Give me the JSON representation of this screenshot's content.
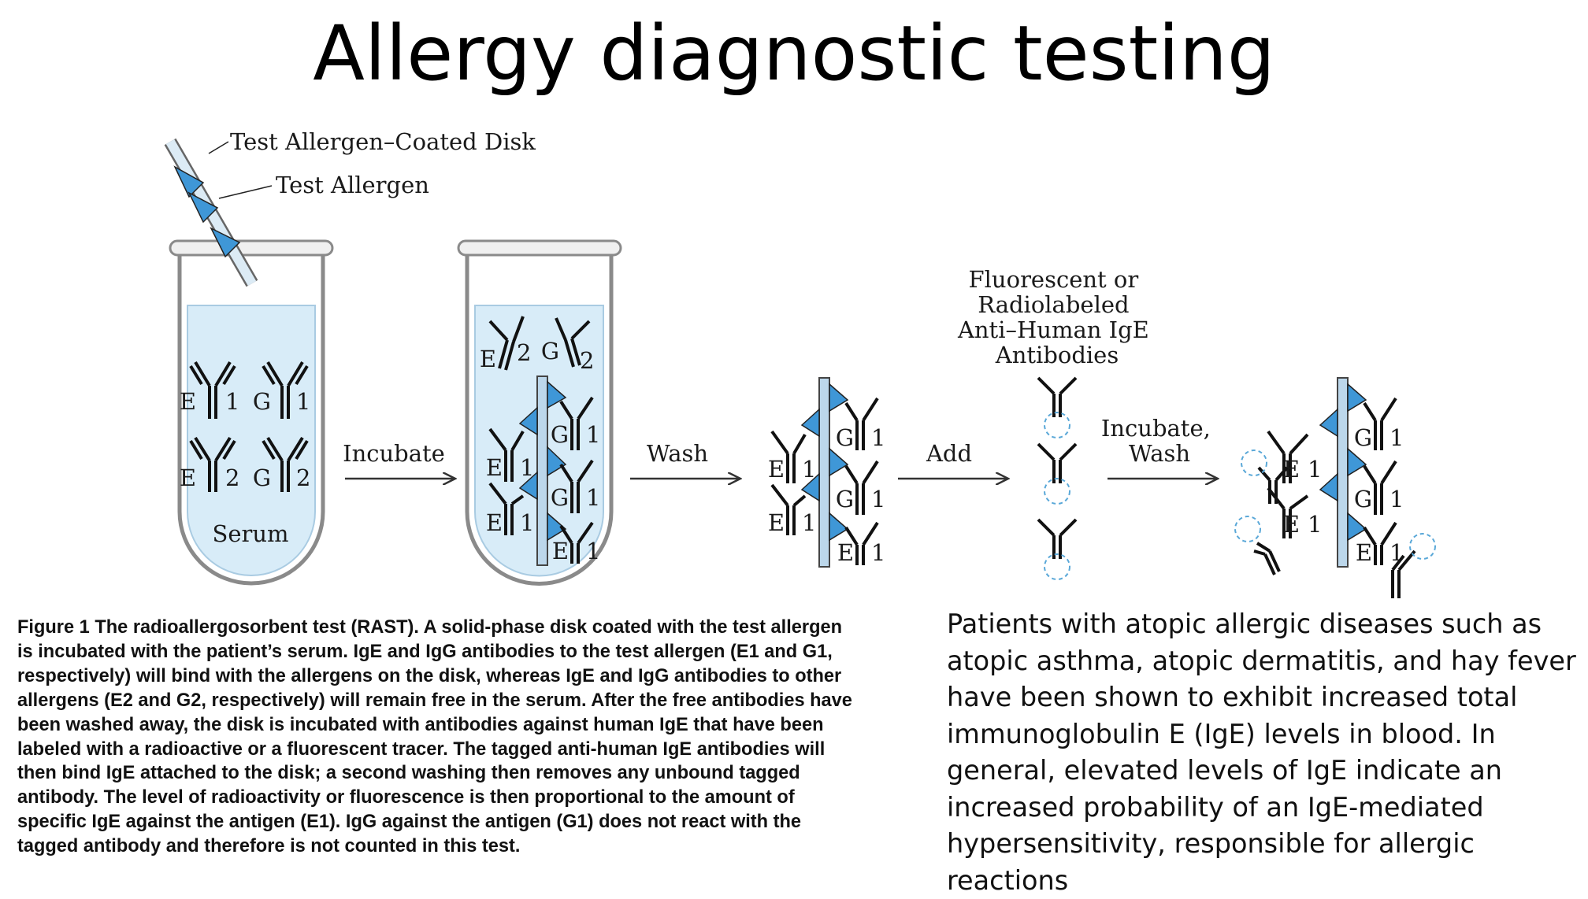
{
  "title": "Allergy diagnostic testing",
  "diagram": {
    "disk_label": "Test Allergen–Coated Disk",
    "allergen_label": "Test Allergen",
    "serum_label": "Serum",
    "incubate_label": "Incubate",
    "wash_label": "Wash",
    "add_label": "Add",
    "tagged_label_lines": [
      "Fluorescent or",
      "Radiolabeled",
      "Anti–Human IgE",
      "Antibodies"
    ],
    "incubate_wash_lines": [
      "Incubate,",
      "Wash"
    ],
    "chain_e": "E",
    "chain_g": "G",
    "num_1": "1",
    "num_2": "2"
  },
  "caption": "Figure 1 The radioallergosorbent test (RAST). A solid-phase disk coated with the test allergen is incubated with the patient’s serum. IgE and IgG antibodies to the test allergen (E1 and G1, respectively) will bind with the allergens on the disk, whereas IgE and IgG antibodies to other allergens (E2 and G2, respectively) will remain free in the serum. After the free antibodies have been washed away, the disk is incubated with antibodies against human IgE that have been labeled with a radioactive or a fluorescent tracer. The tagged anti-human IgE antibodies will then bind IgE attached to the disk; a second washing then removes any unbound tagged antibody. The level of radioactivity or fluorescence is then proportional to the amount of specific IgE against the antigen (E1). IgG against the antigen (G1) does not react with the tagged antibody and therefore is not counted in this test.",
  "body_text": "Patients with atopic allergic diseases such as atopic asthma, atopic dermatitis, and hay fever have been shown to exhibit increased total immunoglobulin E (IgE) levels in blood. In general, elevated levels of IgE indicate an increased probability of an IgE-mediated hypersensitivity, responsible for allergic reactions",
  "colors": {
    "serum": "#d8ecf8",
    "tube_outline": "#777777",
    "allergen": "#3f97d7",
    "disk": "#bcd7eb",
    "tracer": "#5aa8d8"
  }
}
